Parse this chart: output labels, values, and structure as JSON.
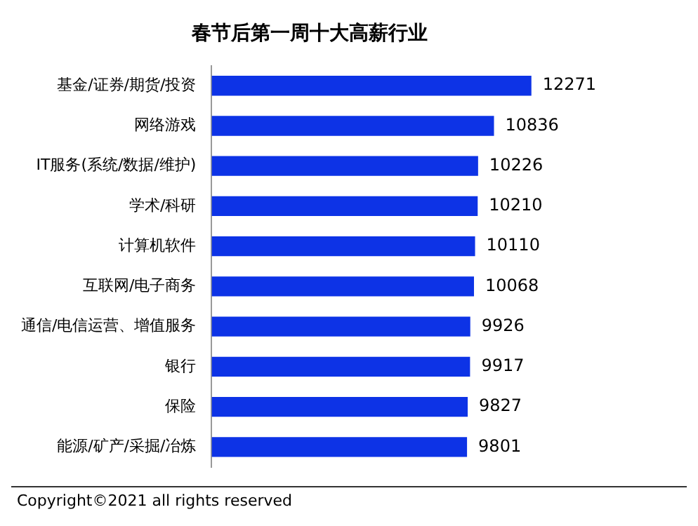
{
  "chart_data": {
    "type": "bar",
    "orientation": "horizontal",
    "title": "春节后第一周十大高薪行业",
    "categories": [
      "基金/证券/期货/投资",
      "网络游戏",
      "IT服务(系统/数据/维护)",
      "学术/科研",
      "计算机软件",
      "互联网/电子商务",
      "通信/电信运营、增值服务",
      "银行",
      "保险",
      "能源/矿产/采掘/冶炼"
    ],
    "values": [
      12271,
      10836,
      10226,
      10210,
      10110,
      10068,
      9926,
      9917,
      9827,
      9801
    ],
    "color": "#0d33e6",
    "data_labels": true,
    "grid": false,
    "legend": false,
    "annotations": [
      "Copyright©2021 all rights reserved"
    ]
  }
}
